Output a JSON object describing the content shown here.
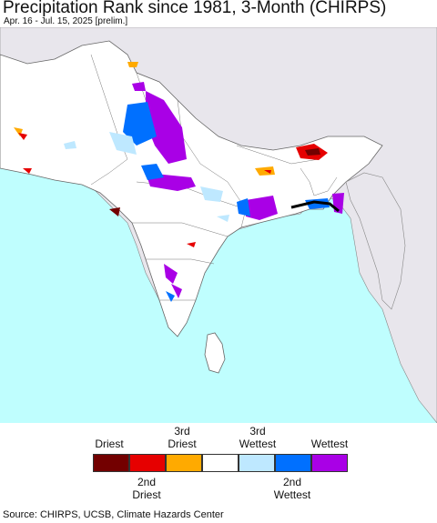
{
  "title": "Precipitation Rank since 1981, 3-Month (CHIRPS)",
  "subtitle": "Apr. 16 - Jul. 15, 2025 [prelim.]",
  "legend": {
    "labels_top": [
      "Driest",
      "3rd\nDriest",
      "3rd\nWettest",
      "Wettest"
    ],
    "labels_bottom": [
      "2nd\nDriest",
      "2nd\nWettest"
    ],
    "colors": [
      "#730000",
      "#e60000",
      "#ffaa00",
      "#ffffff",
      "#bee8ff",
      "#0070ff",
      "#a900e6"
    ]
  },
  "colors": {
    "ocean": "#bffefe",
    "land": "#ffffff",
    "outside_land": "#e8e6ec",
    "border": "#666666"
  },
  "source": "Source: CHIRPS, UCSB, Climate Hazards Center"
}
